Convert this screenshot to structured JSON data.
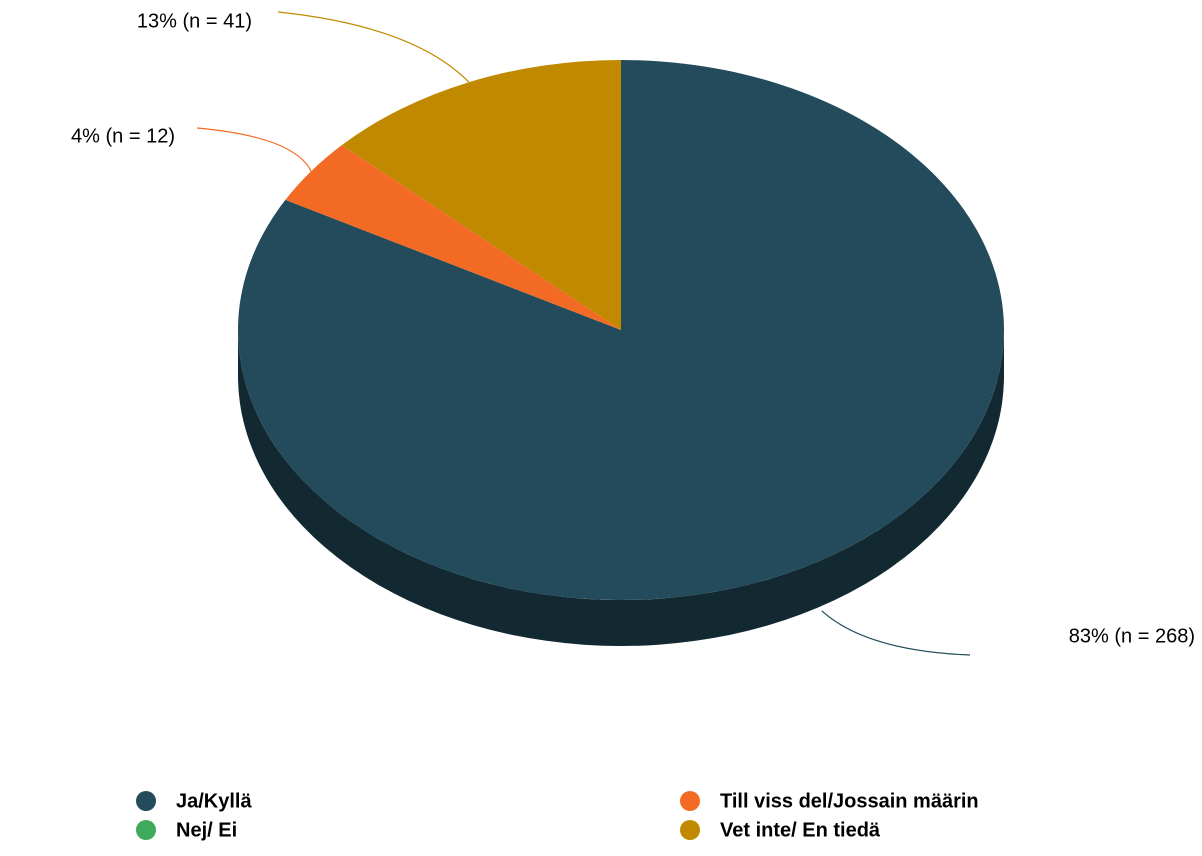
{
  "chart_data": {
    "type": "pie3d",
    "categories": [
      "Ja/Kyllä",
      "Nej/ Ei",
      "Till viss del/Jossain määrin",
      "Vet inte/ En tiedä"
    ],
    "values": [
      83,
      0,
      4,
      13
    ],
    "value_labels": [
      "83% (n = 268)",
      null,
      "4% (n = 12)",
      "13% (n = 41)"
    ],
    "colors": [
      "#234b5b",
      "#3fa95c",
      "#f26a24",
      "#c08900"
    ],
    "legend": "bottom"
  }
}
